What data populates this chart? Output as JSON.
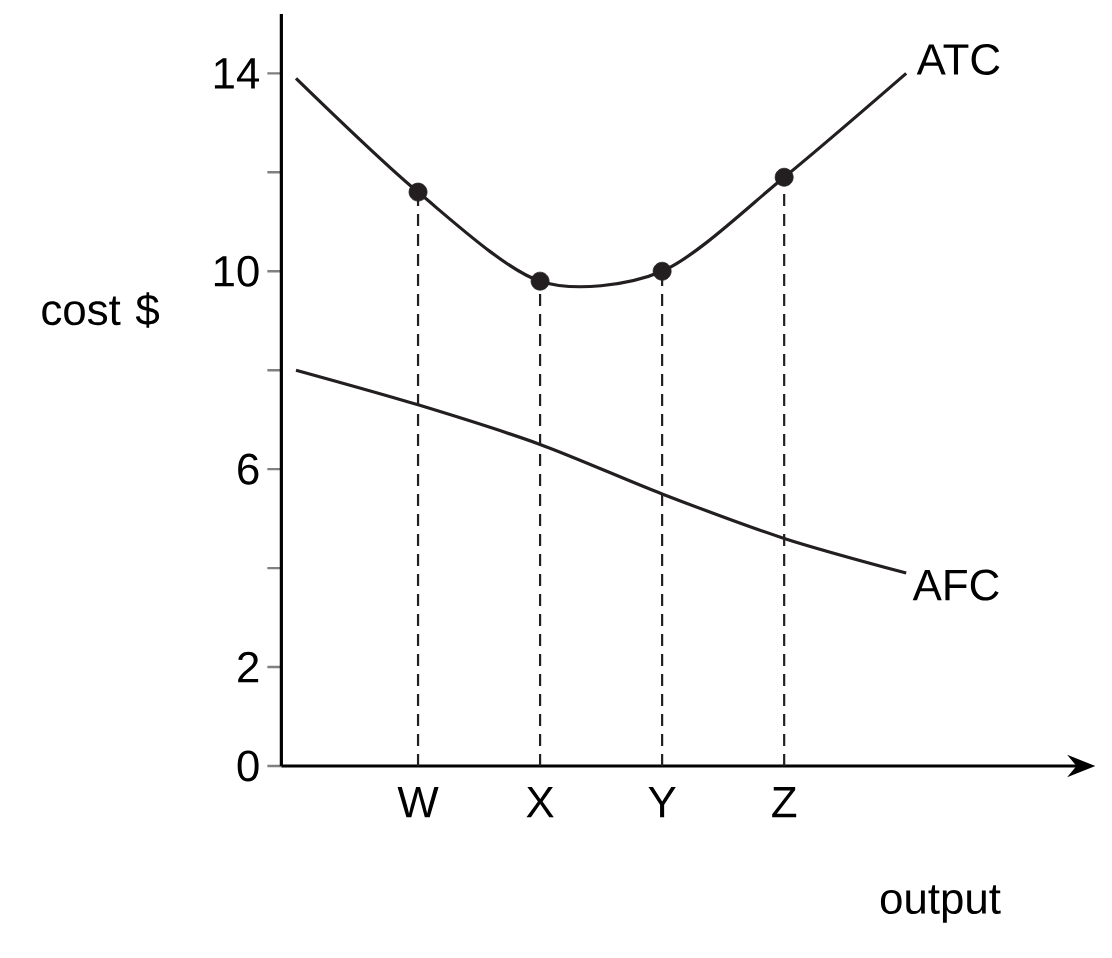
{
  "chart_data": {
    "type": "line",
    "xlabel": "output",
    "ylabel": "cost $",
    "ylim": [
      0,
      15.2
    ],
    "categories": [
      null,
      "W",
      "X",
      "Y",
      "Z",
      null
    ],
    "yticks": [
      0,
      2,
      {
        "value": 4,
        "label": null
      },
      6,
      {
        "value": 8,
        "label": null
      },
      10,
      {
        "value": 12,
        "label": null
      },
      14
    ],
    "legend": false,
    "series": [
      {
        "name": "ATC",
        "color": "#231f20",
        "values": [
          13.9,
          11.6,
          9.8,
          10.0,
          11.9,
          14.0
        ]
      },
      {
        "name": "AFC",
        "color": "#231f20",
        "values": [
          8.0,
          7.3,
          6.5,
          5.5,
          4.6,
          3.9
        ]
      },
      {
        "type": "lollipop",
        "color": "#231f20",
        "marker": "circle",
        "line_style": "dashed",
        "values": [
          null,
          11.6,
          9.8,
          10.0,
          11.9,
          null
        ]
      }
    ]
  }
}
